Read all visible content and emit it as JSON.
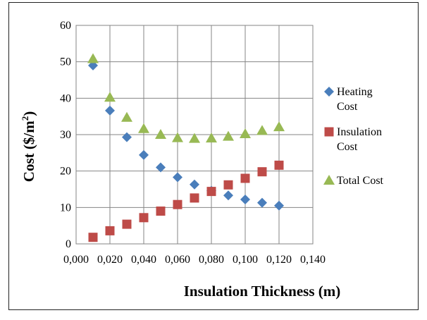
{
  "chart_data": {
    "type": "scatter",
    "xlabel": "Insulation Thickness (m)",
    "ylabel_main": "Cost ($/m",
    "ylabel_sup": "2",
    "ylabel_close": ")",
    "xlim": [
      0,
      0.14
    ],
    "ylim": [
      0,
      60
    ],
    "x_ticks": [
      "0,000",
      "0,020",
      "0,040",
      "0,060",
      "0,080",
      "0,100",
      "0,120",
      "0,140"
    ],
    "y_ticks": [
      "0",
      "10",
      "20",
      "30",
      "40",
      "50",
      "60"
    ],
    "grid": true,
    "legend_position": "right",
    "x": [
      0.01,
      0.02,
      0.03,
      0.04,
      0.05,
      0.06,
      0.07,
      0.08,
      0.09,
      0.1,
      0.11,
      0.12
    ],
    "series": [
      {
        "name": "Heating Cost",
        "marker": "diamond",
        "color": "#4a7ebb",
        "values": [
          49,
          36.6,
          29.3,
          24.4,
          21,
          18.3,
          16.3,
          14.6,
          13.3,
          12.2,
          11.3,
          10.5
        ]
      },
      {
        "name": "Insulation Cost",
        "marker": "square",
        "color": "#be4b48",
        "values": [
          1.8,
          3.6,
          5.4,
          7.2,
          9,
          10.8,
          12.6,
          14.4,
          16.2,
          18,
          19.8,
          21.6
        ]
      },
      {
        "name": "Total Cost",
        "marker": "triangle",
        "color": "#98b954",
        "values": [
          50.8,
          40.2,
          34.7,
          31.6,
          30,
          29.1,
          28.9,
          29,
          29.5,
          30.2,
          31.1,
          32.1
        ]
      }
    ],
    "legend_lines": [
      [
        "Heating",
        "Cost"
      ],
      [
        "Insulation",
        "Cost"
      ],
      [
        "Total Cost"
      ]
    ]
  }
}
